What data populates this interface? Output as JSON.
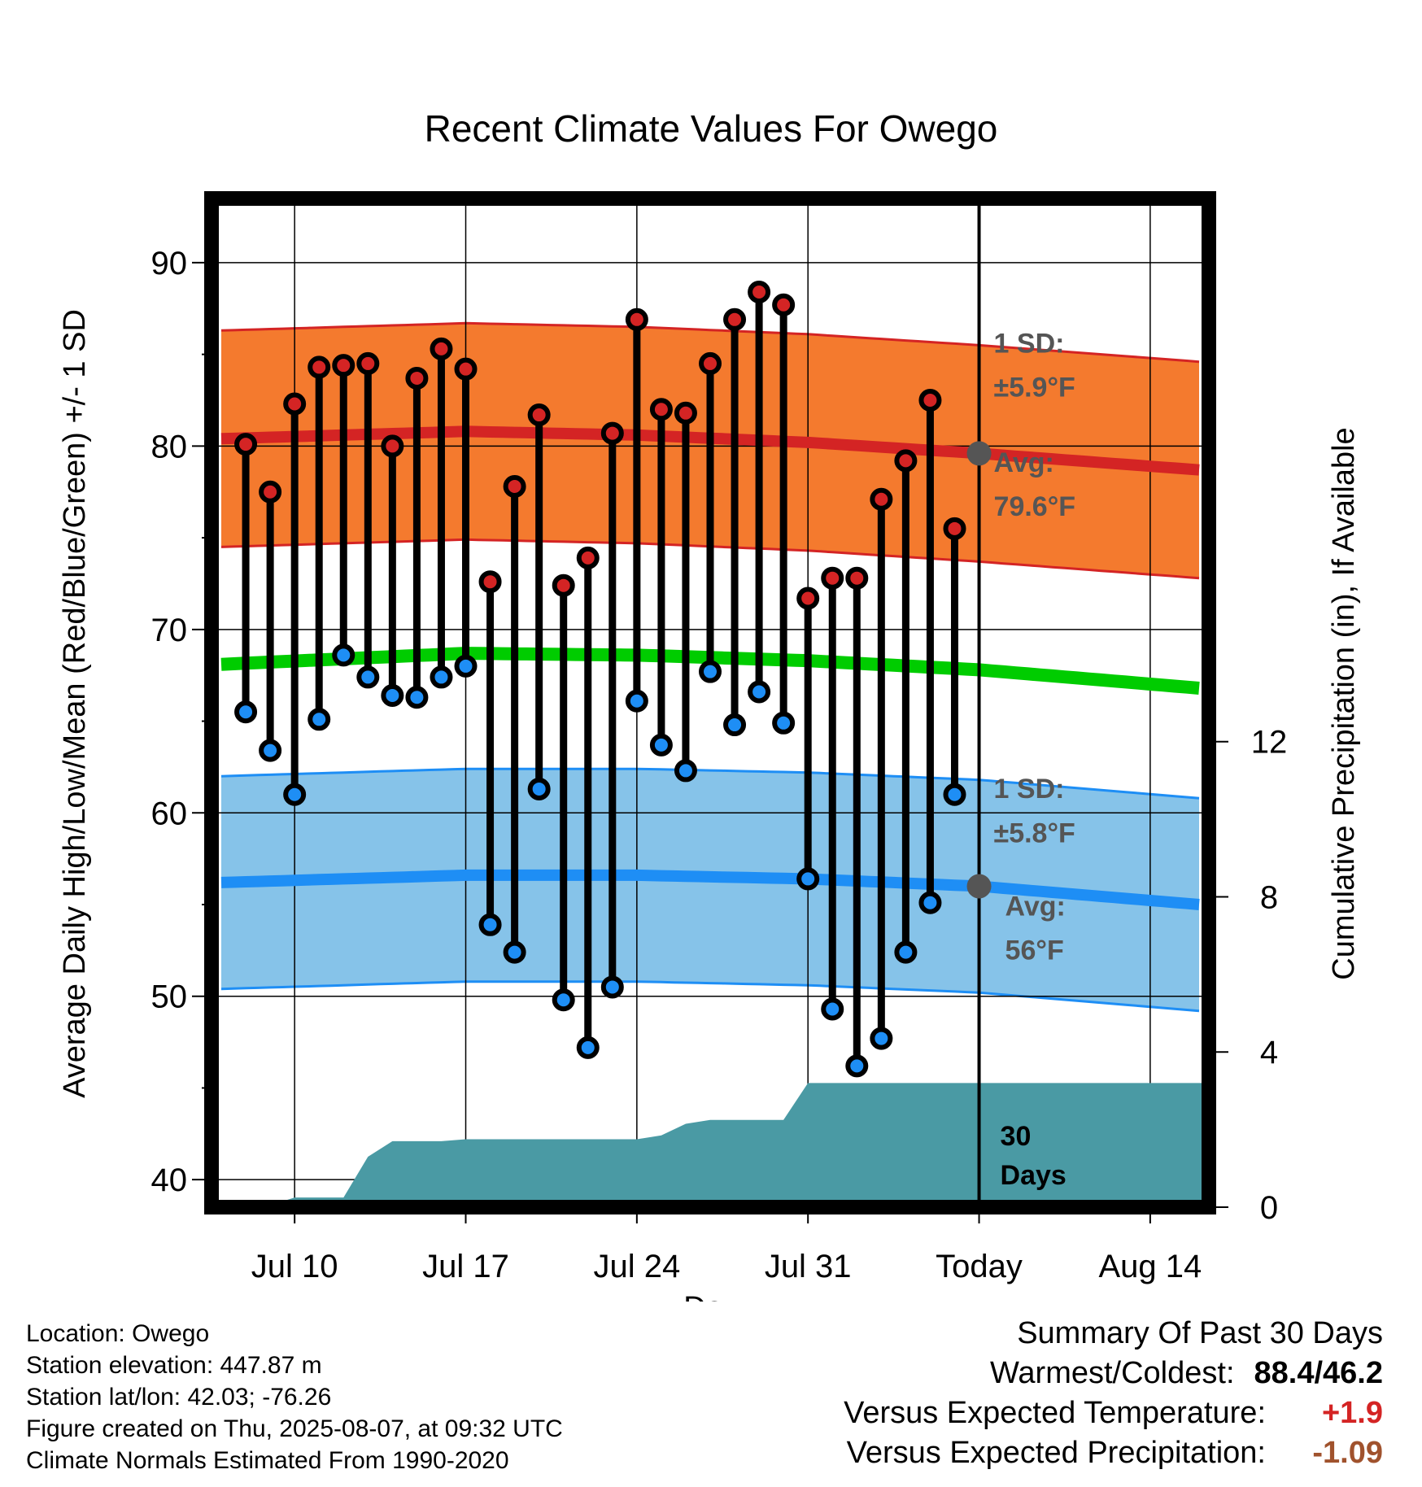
{
  "chart_data": {
    "type": "line",
    "title": "Recent Climate Values For Owego",
    "xlabel": "Day",
    "ylabel_left": "Average Daily High/Low/Mean (Red/Blue/Green) +/- 1 SD",
    "ylabel_right": "Cumulative Precipitation (in), If Available",
    "ylim_left": [
      38.5,
      93.5
    ],
    "ylim_right": [
      0,
      26
    ],
    "x_range_days": [
      -31.4,
      9.4
    ],
    "today_offset": 0,
    "left_ticks": [
      40,
      50,
      60,
      70,
      80,
      90
    ],
    "right_ticks": [
      0,
      4,
      8,
      12
    ],
    "x_ticks": [
      {
        "day": -28,
        "label": "Jul 10"
      },
      {
        "day": -21,
        "label": "Jul 17"
      },
      {
        "day": -14,
        "label": "Jul 24"
      },
      {
        "day": -7,
        "label": "Jul 31"
      },
      {
        "day": 0,
        "label": "Today"
      },
      {
        "day": 7,
        "label": "Aug 14"
      }
    ],
    "days": [
      -30,
      -29,
      -28,
      -27,
      -26,
      -25,
      -24,
      -23,
      -22,
      -21,
      -20,
      -19,
      -18,
      -17,
      -16,
      -15,
      -14,
      -13,
      -12,
      -11,
      -10,
      -9,
      -8,
      -7,
      -6,
      -5,
      -4,
      -3,
      -2,
      -1
    ],
    "highs": [
      80.1,
      77.5,
      82.3,
      84.3,
      84.4,
      84.5,
      80.0,
      83.7,
      85.3,
      84.2,
      72.6,
      77.8,
      81.7,
      72.4,
      73.9,
      80.7,
      86.9,
      82.0,
      81.8,
      84.5,
      86.9,
      88.4,
      87.7,
      71.7,
      72.8,
      72.8,
      77.1,
      79.2,
      82.5,
      75.5
    ],
    "lows": [
      65.5,
      63.4,
      61.0,
      65.1,
      68.6,
      67.4,
      66.4,
      66.3,
      67.4,
      68.0,
      53.9,
      52.4,
      61.3,
      49.8,
      47.2,
      50.5,
      66.1,
      63.7,
      62.3,
      67.7,
      64.8,
      66.6,
      64.9,
      56.4,
      49.3,
      46.2,
      47.7,
      52.4,
      55.1,
      61.0
    ],
    "normals": {
      "days": [
        -31,
        -21,
        -14,
        -7,
        0,
        9
      ],
      "high_avg": [
        80.4,
        80.8,
        80.6,
        80.2,
        79.6,
        78.7
      ],
      "low_avg": [
        56.2,
        56.6,
        56.6,
        56.4,
        56.0,
        55.0
      ],
      "mean_avg": [
        68.1,
        68.7,
        68.6,
        68.3,
        67.8,
        66.8
      ],
      "high_sd": 5.9,
      "low_sd": 5.8
    },
    "precip": {
      "days": [
        -31.2,
        -30,
        -29,
        -28,
        -27,
        -26,
        -25,
        -24,
        -23,
        -22,
        -21,
        -20,
        -19,
        -18,
        -17,
        -16,
        -15,
        -14,
        -13,
        -12,
        -11,
        -10,
        -9,
        -8,
        -7,
        -6,
        -5,
        -4,
        -3,
        -2,
        -1,
        9.2
      ],
      "cumulative": [
        0.0,
        0.05,
        0.05,
        0.25,
        0.25,
        0.25,
        1.3,
        1.7,
        1.7,
        1.7,
        1.75,
        1.75,
        1.75,
        1.75,
        1.75,
        1.75,
        1.75,
        1.75,
        1.85,
        2.15,
        2.25,
        2.25,
        2.25,
        2.25,
        3.2,
        3.2,
        3.2,
        3.2,
        3.2,
        3.2,
        3.2,
        3.2
      ]
    },
    "annotations": {
      "high_sd": [
        "1 SD:",
        "±5.9°F"
      ],
      "high_avg": [
        "Avg:",
        "79.6°F"
      ],
      "low_sd": [
        "1 SD:",
        "±5.8°F"
      ],
      "low_avg": [
        "Avg:",
        "56°F"
      ],
      "period": [
        "30",
        "Days"
      ]
    },
    "colors": {
      "high_band": "#f47a2e",
      "high_line": "#d42424",
      "low_band": "#86c3e9",
      "low_line": "#1e8ef5",
      "mean_line": "#00cc00",
      "precip": "#4a9aa4",
      "high_dot": "#d42424",
      "low_dot": "#1e8ef5",
      "today_marker": "#555555"
    }
  },
  "footer": {
    "location": "Location: Owego",
    "elevation": "Station elevation: 447.87 m",
    "latlon": "Station lat/lon: 42.03; -76.26",
    "created": "Figure created on Thu, 2025-08-07, at 09:32 UTC",
    "normals": "Climate Normals Estimated From 1990-2020"
  },
  "summary": {
    "heading": "Summary Of Past 30 Days",
    "warm_cold_label": "Warmest/Coldest:",
    "warm_cold_value": "88.4/46.2",
    "temp_label": "Versus Expected Temperature:",
    "temp_value": "+1.9",
    "temp_color": "#d42424",
    "precip_label": "Versus Expected Precipitation:",
    "precip_value": "-1.09",
    "precip_color": "#a0522d"
  }
}
